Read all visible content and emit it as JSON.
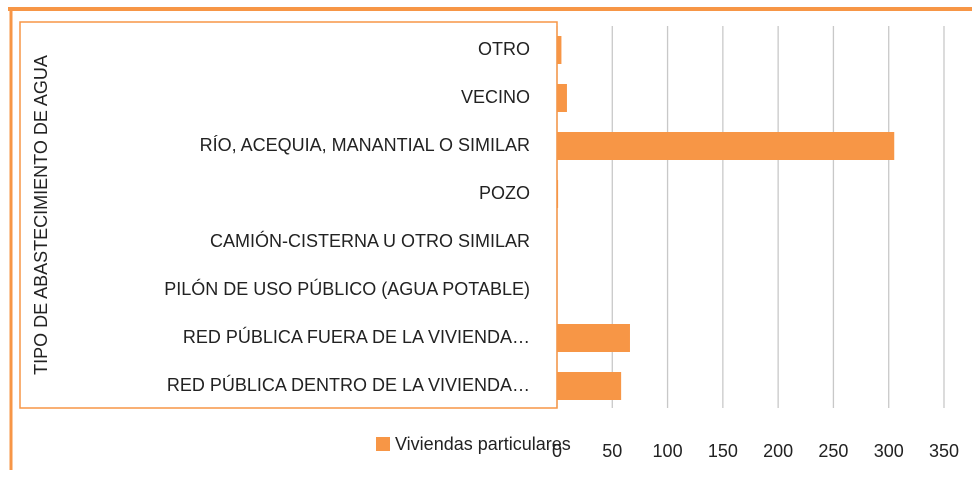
{
  "chart_data": {
    "type": "bar",
    "orientation": "horizontal",
    "y_label": "TIPO DE ABASTECIMIENTO DE AGUA",
    "categories": [
      "OTRO",
      "VECINO",
      "RÍO, ACEQUIA, MANANTIAL O SIMILAR",
      "POZO",
      "CAMIÓN-CISTERNA U OTRO SIMILAR",
      "PILÓN DE USO PÚBLICO (AGUA POTABLE)",
      "RED PÚBLICA FUERA DE LA VIVIENDA…",
      "RED PÚBLICA DENTRO DE LA VIVIENDA…"
    ],
    "series": [
      {
        "name": "Viviendas particulares",
        "color": "#f79646",
        "values": [
          4,
          9,
          305,
          1,
          0,
          0,
          66,
          58
        ]
      }
    ],
    "xlim": [
      0,
      350
    ],
    "xticks": [
      0,
      50,
      100,
      150,
      200,
      250,
      300,
      350
    ],
    "grid": true,
    "legend": "bottom"
  }
}
